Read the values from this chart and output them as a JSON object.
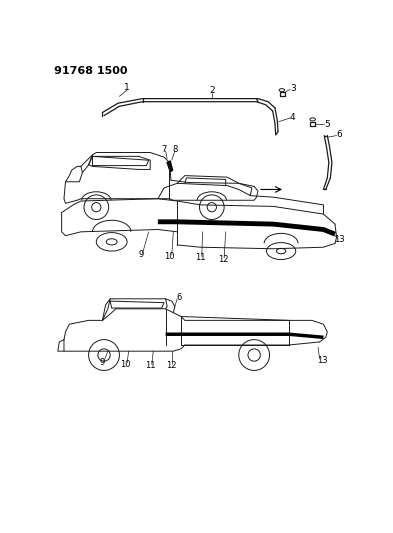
{
  "title": "91768 1500",
  "bg_color": "#ffffff",
  "line_color": "#1a1a1a",
  "fig_width": 3.93,
  "fig_height": 5.33,
  "dpi": 100
}
